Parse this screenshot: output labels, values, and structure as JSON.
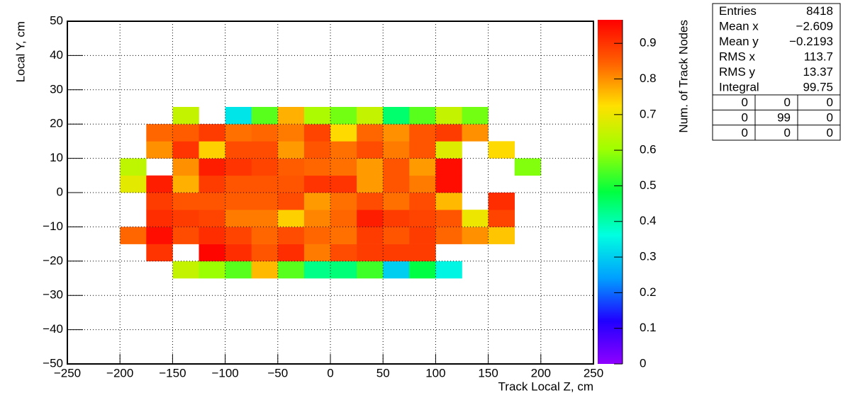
{
  "chart_data": {
    "type": "heatmap",
    "xlabel": "Track Local Z, cm",
    "ylabel": "Local Y, cm",
    "zlabel": "Num. of Track Nodes",
    "xlim": [
      -250,
      250
    ],
    "ylim": [
      -50,
      50
    ],
    "zlim": [
      0,
      0.966
    ],
    "xticks": [
      {
        "value": -250,
        "label": "−250"
      },
      {
        "value": -200,
        "label": "−200"
      },
      {
        "value": -150,
        "label": "−150"
      },
      {
        "value": -100,
        "label": "−100"
      },
      {
        "value": -50,
        "label": "−50"
      },
      0,
      50,
      100,
      150,
      200,
      250
    ],
    "yticks": [
      {
        "value": -50,
        "label": "−50"
      },
      {
        "value": -40,
        "label": "−40"
      },
      {
        "value": -30,
        "label": "−30"
      },
      {
        "value": -20,
        "label": "−20"
      },
      {
        "value": -10,
        "label": "−10"
      },
      0,
      10,
      20,
      30,
      40,
      50
    ],
    "zticks": [
      0,
      0.1,
      0.2,
      0.3,
      0.4,
      0.5,
      0.6,
      0.7,
      0.8,
      0.9
    ],
    "grid": true,
    "palette": [
      "#8f00ff",
      "#2000ff",
      "#00a0ff",
      "#00ffe0",
      "#00ff40",
      "#a0ff00",
      "#ffe000",
      "#ff6000",
      "#ff0000"
    ],
    "xbins": [
      -200,
      -175,
      -150,
      -125,
      -100,
      -75,
      -50,
      -25,
      0,
      25,
      50,
      75,
      100,
      125,
      150,
      175,
      200
    ],
    "ybins": [
      -25,
      -20,
      -15,
      -10,
      -5,
      0,
      5,
      10,
      15,
      20,
      25
    ],
    "z": [
      [
        null,
        null,
        0.65,
        0.6,
        0.55,
        0.76,
        0.55,
        0.43,
        0.44,
        0.53,
        0.3,
        0.48,
        0.35,
        null,
        null,
        null
      ],
      [
        null,
        0.9,
        null,
        0.96,
        0.91,
        0.86,
        0.91,
        0.82,
        0.87,
        0.89,
        0.89,
        0.89,
        null,
        null,
        null,
        null
      ],
      [
        0.84,
        0.95,
        0.87,
        0.91,
        0.88,
        0.84,
        0.87,
        0.84,
        0.83,
        0.89,
        0.86,
        0.89,
        0.84,
        0.8,
        0.75,
        null
      ],
      [
        null,
        0.91,
        0.89,
        0.88,
        0.82,
        0.82,
        0.74,
        0.81,
        0.84,
        0.93,
        0.89,
        0.88,
        0.86,
        0.7,
        0.88,
        null
      ],
      [
        null,
        0.89,
        0.86,
        0.86,
        0.85,
        0.85,
        0.87,
        0.79,
        0.83,
        0.87,
        0.83,
        0.87,
        0.76,
        null,
        0.91,
        null
      ],
      [
        0.69,
        0.93,
        0.77,
        0.89,
        0.86,
        0.86,
        0.86,
        0.9,
        0.9,
        0.79,
        0.86,
        0.82,
        0.95,
        null,
        null,
        null
      ],
      [
        0.64,
        null,
        0.8,
        0.93,
        0.9,
        0.88,
        0.85,
        0.84,
        0.83,
        0.79,
        0.86,
        0.79,
        0.95,
        null,
        null,
        0.58
      ],
      [
        null,
        0.8,
        0.9,
        0.74,
        0.87,
        0.87,
        0.79,
        0.86,
        0.83,
        0.87,
        0.82,
        0.86,
        0.68,
        null,
        0.73,
        null
      ],
      [
        null,
        0.84,
        0.85,
        0.89,
        0.83,
        0.84,
        0.82,
        0.88,
        0.73,
        0.84,
        0.8,
        0.86,
        0.89,
        0.8,
        null,
        null
      ],
      [
        null,
        null,
        0.65,
        null,
        0.33,
        0.55,
        0.77,
        0.62,
        0.57,
        0.65,
        0.45,
        0.55,
        0.65,
        0.57,
        null,
        null
      ]
    ],
    "stats": [
      {
        "label": "Entries",
        "value": "8418"
      },
      {
        "label": "Mean x",
        "value": "−2.609"
      },
      {
        "label": "Mean y",
        "value": "−0.2193"
      },
      {
        "label": "RMS x",
        "value": "113.7"
      },
      {
        "label": "RMS y",
        "value": "13.37"
      },
      {
        "label": "Integral",
        "value": "99.75"
      }
    ],
    "overflow_table": [
      [
        "0",
        "0",
        "0"
      ],
      [
        "0",
        "99",
        "0"
      ],
      [
        "0",
        "0",
        "0"
      ]
    ]
  }
}
